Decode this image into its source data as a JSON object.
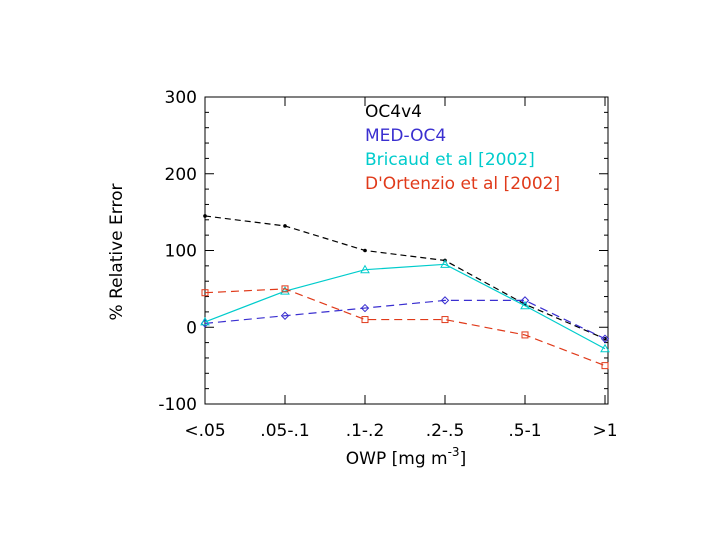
{
  "chart_data": {
    "type": "line",
    "title": "",
    "xlabel": "OWP [mg m",
    "xlabel_superscript": "-3",
    "xlabel_close": "]",
    "ylabel": "% Relative Error",
    "categories": [
      "<.05",
      ".05-.1",
      ".1-.2",
      ".2-.5",
      ".5-1",
      ">1"
    ],
    "ylim": [
      -100,
      300
    ],
    "yticks": [
      -100,
      0,
      100,
      200,
      300
    ],
    "legend_position": "top-right",
    "series": [
      {
        "name": "OC4v4",
        "color": "#000000",
        "dash": "6,4",
        "marker": "dot",
        "values": [
          145,
          132,
          100,
          87,
          30,
          -15
        ]
      },
      {
        "name": "MED-OC4",
        "color": "#3a2fd0",
        "dash": "8,5",
        "marker": "diamond",
        "values": [
          5,
          15,
          25,
          35,
          35,
          -15
        ]
      },
      {
        "name": "Bricaud et al [2002]",
        "color": "#00cccc",
        "dash": "",
        "marker": "triangle",
        "values": [
          7,
          47,
          75,
          82,
          28,
          -28
        ]
      },
      {
        "name": "D'Ortenzio et al [2002]",
        "color": "#e03a1a",
        "dash": "8,5",
        "marker": "square",
        "values": [
          45,
          50,
          10,
          10,
          -10,
          -50
        ]
      }
    ]
  }
}
